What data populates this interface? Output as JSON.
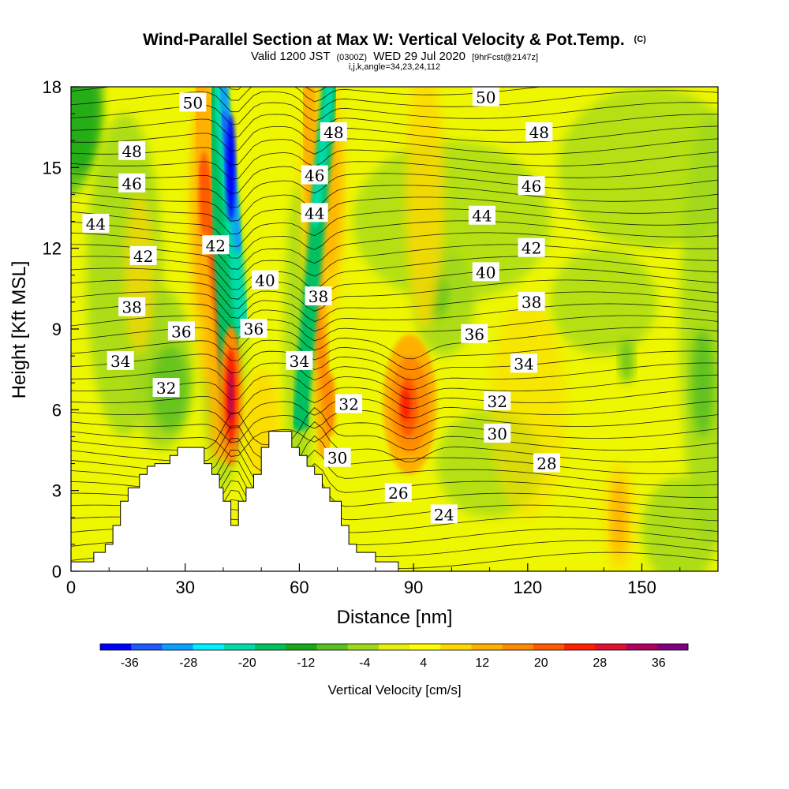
{
  "chart_data": {
    "type": "heatmap",
    "title_main": "Wind-Parallel Section at Max W: Vertical Velocity & Pot.Temp.",
    "title_mark": "(C)",
    "subtitle_a": "Valid 1200 JST",
    "subtitle_b": "(0300Z)",
    "subtitle_c": "WED 29 Jul 2020",
    "subtitle_d": "[9hrFcst@2147z]",
    "subtitle_small": "i,j,k,angle=34,23,24,112",
    "xlabel": "Distance [nm]",
    "ylabel": "Height [Kft MSL]",
    "xlim": [
      0,
      170
    ],
    "ylim": [
      0,
      18
    ],
    "xticks": [
      0,
      30,
      60,
      90,
      120,
      150
    ],
    "yticks": [
      0,
      3,
      6,
      9,
      12,
      15,
      18
    ],
    "colorbar": {
      "label": "Vertical Velocity [cm/s]",
      "tick_values": [
        -36,
        -28,
        -20,
        -12,
        -4,
        4,
        12,
        20,
        28,
        36
      ],
      "tick_labels": [
        "-36",
        "-28",
        "-20",
        "-12",
        "-4",
        "4",
        "12",
        "20",
        "28",
        "36"
      ],
      "range": [
        -40,
        40
      ],
      "colors": [
        "#0000ff",
        "#1e5aff",
        "#0a9eff",
        "#00f0ff",
        "#00dcaa",
        "#00c060",
        "#18a818",
        "#58c020",
        "#9ed81a",
        "#e6f00a",
        "#ffff00",
        "#ffd800",
        "#ffb000",
        "#ff8c00",
        "#ff5a00",
        "#ff2000",
        "#e01030",
        "#b00060",
        "#800080"
      ]
    },
    "theta_contour_labels": [
      {
        "text": "50",
        "x": 32,
        "y": 17.4
      },
      {
        "text": "48",
        "x": 16,
        "y": 15.6
      },
      {
        "text": "46",
        "x": 16,
        "y": 14.4
      },
      {
        "text": "44",
        "x": 6.5,
        "y": 12.9
      },
      {
        "text": "42",
        "x": 19,
        "y": 11.7
      },
      {
        "text": "42",
        "x": 38,
        "y": 12.1
      },
      {
        "text": "38",
        "x": 16,
        "y": 9.8
      },
      {
        "text": "36",
        "x": 29,
        "y": 8.9
      },
      {
        "text": "36",
        "x": 48,
        "y": 9.0
      },
      {
        "text": "34",
        "x": 13,
        "y": 7.8
      },
      {
        "text": "32",
        "x": 25,
        "y": 6.8
      },
      {
        "text": "40",
        "x": 51,
        "y": 10.8
      },
      {
        "text": "38",
        "x": 65,
        "y": 10.2
      },
      {
        "text": "34",
        "x": 60,
        "y": 7.8
      },
      {
        "text": "32",
        "x": 73,
        "y": 6.2
      },
      {
        "text": "30",
        "x": 70,
        "y": 4.2
      },
      {
        "text": "26",
        "x": 86,
        "y": 2.9
      },
      {
        "text": "24",
        "x": 98,
        "y": 2.1
      },
      {
        "text": "48",
        "x": 69,
        "y": 16.3
      },
      {
        "text": "46",
        "x": 64,
        "y": 14.7
      },
      {
        "text": "44",
        "x": 64,
        "y": 13.3
      },
      {
        "text": "50",
        "x": 109,
        "y": 17.6
      },
      {
        "text": "48",
        "x": 123,
        "y": 16.3
      },
      {
        "text": "46",
        "x": 121,
        "y": 14.3
      },
      {
        "text": "44",
        "x": 108,
        "y": 13.2
      },
      {
        "text": "42",
        "x": 121,
        "y": 12.0
      },
      {
        "text": "40",
        "x": 109,
        "y": 11.1
      },
      {
        "text": "38",
        "x": 121,
        "y": 10.0
      },
      {
        "text": "36",
        "x": 106,
        "y": 8.8
      },
      {
        "text": "34",
        "x": 119,
        "y": 7.7
      },
      {
        "text": "32",
        "x": 112,
        "y": 6.3
      },
      {
        "text": "30",
        "x": 112,
        "y": 5.1
      },
      {
        "text": "28",
        "x": 125,
        "y": 4.0
      }
    ],
    "terrain_outline_description": "",
    "terrain_outline": [
      [
        0,
        0
      ],
      [
        0,
        0.35
      ],
      [
        6,
        0.35
      ],
      [
        6,
        0.7
      ],
      [
        9,
        0.7
      ],
      [
        9,
        1.0
      ],
      [
        11,
        1.0
      ],
      [
        11,
        1.7
      ],
      [
        13,
        1.7
      ],
      [
        13,
        2.6
      ],
      [
        15,
        2.6
      ],
      [
        15,
        3.1
      ],
      [
        18,
        3.1
      ],
      [
        18,
        3.6
      ],
      [
        20,
        3.6
      ],
      [
        20,
        3.9
      ],
      [
        22,
        3.9
      ],
      [
        22,
        4.0
      ],
      [
        26,
        4.0
      ],
      [
        26,
        4.3
      ],
      [
        28,
        4.3
      ],
      [
        28,
        4.6
      ],
      [
        35,
        4.6
      ],
      [
        35,
        4.0
      ],
      [
        37,
        4.0
      ],
      [
        37,
        3.6
      ],
      [
        39,
        3.6
      ],
      [
        39,
        3.1
      ],
      [
        40,
        3.1
      ],
      [
        40,
        2.6
      ],
      [
        42,
        2.6
      ],
      [
        42,
        1.7
      ],
      [
        44,
        1.7
      ],
      [
        44,
        2.6
      ],
      [
        46,
        2.6
      ],
      [
        46,
        3.1
      ],
      [
        48,
        3.1
      ],
      [
        48,
        3.6
      ],
      [
        50,
        3.6
      ],
      [
        50,
        4.6
      ],
      [
        52,
        4.6
      ],
      [
        52,
        5.2
      ],
      [
        58,
        5.2
      ],
      [
        58,
        4.6
      ],
      [
        60,
        4.6
      ],
      [
        60,
        4.3
      ],
      [
        62,
        4.3
      ],
      [
        62,
        3.9
      ],
      [
        64,
        3.9
      ],
      [
        64,
        3.6
      ],
      [
        66,
        3.6
      ],
      [
        66,
        3.1
      ],
      [
        68,
        3.1
      ],
      [
        68,
        2.6
      ],
      [
        71,
        2.6
      ],
      [
        71,
        1.7
      ],
      [
        73,
        1.7
      ],
      [
        73,
        1.0
      ],
      [
        75,
        1.0
      ],
      [
        75,
        0.7
      ],
      [
        80,
        0.7
      ],
      [
        80,
        0.35
      ],
      [
        86,
        0.35
      ],
      [
        86,
        0
      ],
      [
        0,
        0
      ]
    ]
  }
}
